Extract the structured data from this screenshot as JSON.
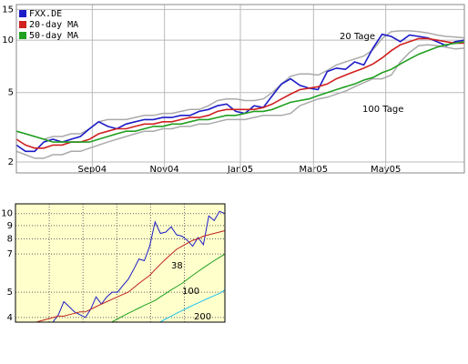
{
  "chart_data": [
    {
      "type": "line",
      "log_y": true,
      "grid": true,
      "legend": "upper-left",
      "background": "#ffffff",
      "xlim": [
        0,
        49
      ],
      "xticks": [
        {
          "value": 8.3,
          "label": "Sep04"
        },
        {
          "value": 16.2,
          "label": "Nov04"
        },
        {
          "value": 24.5,
          "label": "Jan05"
        },
        {
          "value": 32.5,
          "label": "Mar05"
        },
        {
          "value": 40.4,
          "label": "May05"
        }
      ],
      "ylim": [
        1.73,
        16
      ],
      "yticks": [
        2,
        5,
        10,
        15
      ],
      "annotations": [
        "20 Tage",
        "100 Tage"
      ],
      "bands": {
        "color": "#aaaaaa",
        "upper": [
          3.0,
          2.9,
          2.8,
          2.7,
          2.8,
          2.8,
          2.9,
          2.9,
          3.1,
          3.4,
          3.5,
          3.5,
          3.5,
          3.6,
          3.7,
          3.7,
          3.8,
          3.8,
          3.9,
          4.0,
          4.0,
          4.2,
          4.5,
          4.6,
          4.6,
          4.5,
          4.5,
          4.6,
          5.0,
          5.6,
          6.2,
          6.4,
          6.4,
          6.3,
          6.7,
          7.2,
          7.5,
          7.8,
          8.1,
          8.8,
          10.2,
          11.2,
          11.3,
          11.3,
          11.2,
          11.0,
          10.7,
          10.5,
          10.4,
          10.3
        ],
        "lower": [
          2.3,
          2.2,
          2.1,
          2.1,
          2.2,
          2.2,
          2.3,
          2.3,
          2.4,
          2.5,
          2.6,
          2.7,
          2.8,
          2.9,
          3.0,
          3.0,
          3.1,
          3.1,
          3.2,
          3.2,
          3.3,
          3.3,
          3.4,
          3.5,
          3.5,
          3.5,
          3.6,
          3.7,
          3.7,
          3.7,
          3.8,
          4.2,
          4.4,
          4.6,
          4.7,
          4.9,
          5.1,
          5.4,
          5.7,
          6.0,
          6.0,
          6.3,
          7.5,
          8.5,
          9.3,
          9.4,
          9.3,
          9.1,
          8.9,
          9.0
        ]
      },
      "series": [
        {
          "name": "FXX.DE",
          "color": "#1c1cc8",
          "values": [
            2.5,
            2.3,
            2.3,
            2.6,
            2.7,
            2.6,
            2.7,
            2.8,
            3.1,
            3.4,
            3.2,
            3.1,
            3.3,
            3.4,
            3.5,
            3.5,
            3.6,
            3.6,
            3.7,
            3.7,
            3.9,
            4.0,
            4.2,
            4.3,
            3.9,
            3.8,
            4.2,
            4.1,
            4.8,
            5.6,
            6.0,
            5.5,
            5.3,
            5.2,
            6.6,
            6.9,
            6.8,
            7.5,
            7.2,
            9.0,
            10.8,
            10.5,
            9.8,
            10.7,
            10.5,
            10.3,
            9.8,
            9.3,
            9.8,
            10.0
          ]
        },
        {
          "name": "20-day MA",
          "color": "#d02020",
          "values": [
            2.7,
            2.5,
            2.4,
            2.4,
            2.5,
            2.5,
            2.6,
            2.6,
            2.7,
            2.9,
            3.0,
            3.1,
            3.1,
            3.2,
            3.3,
            3.3,
            3.4,
            3.4,
            3.5,
            3.6,
            3.6,
            3.7,
            3.9,
            4.0,
            4.0,
            4.0,
            4.0,
            4.1,
            4.3,
            4.6,
            4.9,
            5.2,
            5.3,
            5.4,
            5.6,
            6.0,
            6.3,
            6.6,
            6.9,
            7.3,
            7.9,
            8.7,
            9.4,
            9.8,
            10.2,
            10.2,
            10.0,
            9.8,
            9.6,
            9.6
          ]
        },
        {
          "name": "50-day MA",
          "color": "#20a020",
          "values": [
            3.0,
            2.9,
            2.8,
            2.7,
            2.6,
            2.6,
            2.6,
            2.6,
            2.6,
            2.7,
            2.8,
            2.9,
            3.0,
            3.0,
            3.1,
            3.2,
            3.2,
            3.3,
            3.3,
            3.4,
            3.5,
            3.5,
            3.6,
            3.7,
            3.7,
            3.8,
            3.9,
            3.9,
            4.0,
            4.2,
            4.4,
            4.5,
            4.6,
            4.8,
            5.0,
            5.2,
            5.4,
            5.6,
            5.9,
            6.1,
            6.5,
            6.8,
            7.3,
            7.8,
            8.3,
            8.7,
            9.1,
            9.4,
            9.6,
            9.8
          ]
        }
      ]
    },
    {
      "type": "line",
      "log_y": true,
      "grid": true,
      "background": "#ffffcc",
      "xlim": [
        0,
        39
      ],
      "ylim": [
        3.84,
        10.9
      ],
      "yticks": [
        4,
        5,
        7,
        8,
        9,
        10
      ],
      "annotations": [
        "38",
        "100",
        "200"
      ],
      "series": [
        {
          "color": "#1c1cc8",
          "values": [
            null,
            null,
            null,
            null,
            null,
            null,
            null,
            3.85,
            4.1,
            4.6,
            4.4,
            4.2,
            4.1,
            4.0,
            4.3,
            4.8,
            4.5,
            4.8,
            5.0,
            5.0,
            5.3,
            5.6,
            6.1,
            6.7,
            6.6,
            7.5,
            9.3,
            8.4,
            8.5,
            8.9,
            8.3,
            8.2,
            7.9,
            7.5,
            8.1,
            7.6,
            9.8,
            9.4,
            10.2,
            10.0
          ]
        },
        {
          "color": "#c02020",
          "values": [
            null,
            null,
            null,
            null,
            3.85,
            3.9,
            3.95,
            4.0,
            4.05,
            4.05,
            4.1,
            4.15,
            4.2,
            4.2,
            4.3,
            4.4,
            4.5,
            4.6,
            4.7,
            4.8,
            4.9,
            5.0,
            5.2,
            5.4,
            5.6,
            5.8,
            6.1,
            6.4,
            6.7,
            7.0,
            7.3,
            7.5,
            7.7,
            7.9,
            8.0,
            8.2,
            8.3,
            8.4,
            8.5,
            8.6
          ]
        },
        {
          "color": "#20a020",
          "values": [
            null,
            null,
            null,
            null,
            null,
            null,
            null,
            null,
            null,
            null,
            null,
            null,
            null,
            null,
            null,
            null,
            null,
            null,
            3.85,
            3.95,
            4.05,
            4.15,
            4.25,
            4.35,
            4.45,
            4.55,
            4.65,
            4.8,
            4.95,
            5.1,
            5.25,
            5.4,
            5.6,
            5.8,
            6.0,
            6.2,
            6.4,
            6.6,
            6.8,
            7.0
          ]
        },
        {
          "color": "#20c0f0",
          "values": [
            null,
            null,
            null,
            null,
            null,
            null,
            null,
            null,
            null,
            null,
            null,
            null,
            null,
            null,
            null,
            null,
            null,
            null,
            null,
            null,
            null,
            null,
            null,
            null,
            null,
            null,
            null,
            3.85,
            3.95,
            4.05,
            4.15,
            4.25,
            4.35,
            4.45,
            4.55,
            4.65,
            4.75,
            4.85,
            4.95,
            5.1
          ]
        }
      ]
    }
  ]
}
